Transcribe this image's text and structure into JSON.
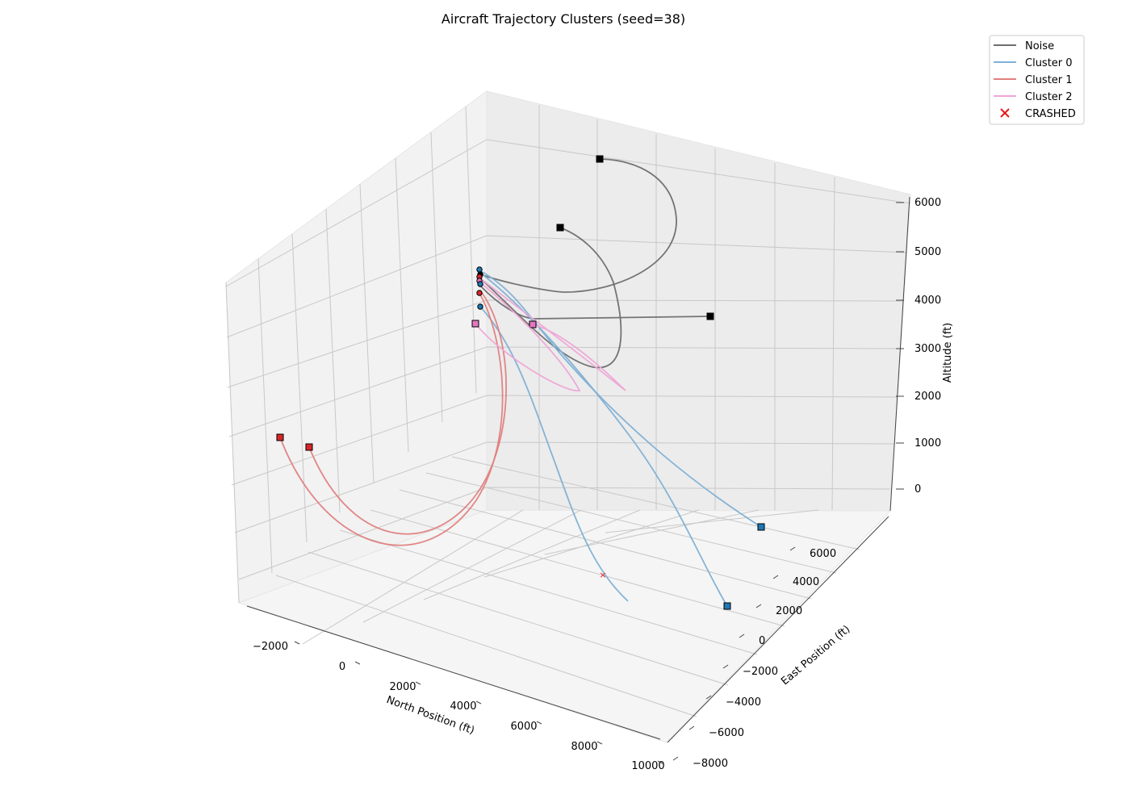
{
  "chart_data": {
    "type": "line",
    "projection": "3d",
    "title": "Aircraft Trajectory Clusters (seed=38)",
    "xlabel": "North Position (ft)",
    "ylabel": "East Position (ft)",
    "zlabel": "Altitude (ft)",
    "x_ticks": [
      "−2000",
      "0",
      "2000",
      "4000",
      "6000",
      "8000",
      "10000"
    ],
    "y_ticks": [
      "−8000",
      "−6000",
      "−4000",
      "−2000",
      "0",
      "2000",
      "4000",
      "6000"
    ],
    "z_ticks": [
      "0",
      "1000",
      "2000",
      "3000",
      "4000",
      "5000",
      "6000"
    ],
    "grid": true,
    "legend_position": "upper-right outside",
    "legend": [
      {
        "label": "Noise",
        "color": "#6e6e6e",
        "kind": "line"
      },
      {
        "label": "Cluster 0",
        "color": "#7fb0d5",
        "kind": "line"
      },
      {
        "label": "Cluster 1",
        "color": "#e07f7f",
        "kind": "line"
      },
      {
        "label": "Cluster 2",
        "color": "#eea7d6",
        "kind": "line"
      },
      {
        "label": "CRASHED",
        "color": "#e31a1c",
        "kind": "x-marker"
      }
    ],
    "start_marker": "circle",
    "end_marker": "square",
    "crash_count": 1,
    "clusters": [
      {
        "name": "Noise",
        "color": "#6e6e6e",
        "end_color": "#000000",
        "trajectories": 3
      },
      {
        "name": "Cluster 0",
        "color": "#7fb0d5",
        "end_color": "#1f77b4",
        "trajectories": 3
      },
      {
        "name": "Cluster 1",
        "color": "#e07f7f",
        "end_color": "#d62728",
        "trajectories": 2
      },
      {
        "name": "Cluster 2",
        "color": "#eea7d6",
        "end_color": "#e377c2",
        "trajectories": 2
      }
    ]
  }
}
